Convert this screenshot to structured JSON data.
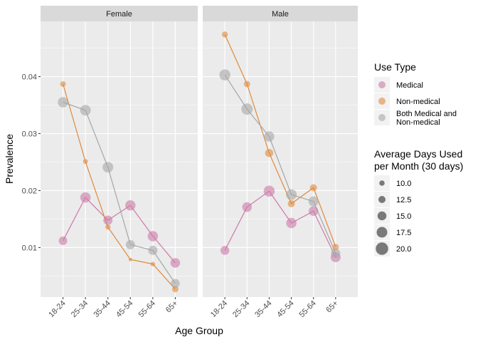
{
  "chart_data": {
    "type": "line",
    "xlabel": "Age Group",
    "ylabel": "Prevalence",
    "categories": [
      "18-24",
      "25-34",
      "35-44",
      "45-54",
      "55-64",
      "65+"
    ],
    "y_ticks": [
      "0.01",
      "0.02",
      "0.03",
      "0.04"
    ],
    "ylim": [
      0.0013,
      0.0497
    ],
    "grid": true,
    "facets": [
      {
        "label": "Female",
        "series": [
          {
            "name": "Medical",
            "values": [
              0.0112,
              0.0188,
              0.0148,
              0.0174,
              0.012,
              0.0073
            ],
            "days": [
              14.5,
              17.0,
              15.5,
              17.0,
              17.0,
              16.0
            ]
          },
          {
            "name": "Non-medical",
            "values": [
              0.0387,
              0.0251,
              0.0136,
              0.0079,
              0.0071,
              0.0027
            ],
            "days": [
              10.5,
              9.5,
              10.0,
              7.5,
              9.0,
              11.5
            ]
          },
          {
            "name": "Both Medical and Non-medical",
            "values": [
              0.0355,
              0.0341,
              0.0241,
              0.0105,
              0.0095,
              0.0037
            ],
            "days": [
              17.0,
              17.5,
              17.5,
              15.5,
              15.5,
              15.0
            ]
          }
        ]
      },
      {
        "label": "Male",
        "series": [
          {
            "name": "Medical",
            "values": [
              0.0095,
              0.0171,
              0.0199,
              0.0143,
              0.0164,
              0.0083
            ],
            "days": [
              15.0,
              16.0,
              18.0,
              17.0,
              16.0,
              16.5
            ]
          },
          {
            "name": "Non-medical",
            "values": [
              0.0474,
              0.0387,
              0.0266,
              0.0177,
              0.0205,
              0.0101
            ],
            "days": [
              11.0,
              11.5,
              14.0,
              12.5,
              12.5,
              11.5
            ]
          },
          {
            "name": "Both Medical and Non-medical",
            "values": [
              0.0403,
              0.0343,
              0.0295,
              0.0193,
              0.0181,
              0.009
            ],
            "days": [
              18.0,
              18.5,
              17.0,
              17.5,
              16.5,
              15.5
            ]
          }
        ]
      }
    ],
    "colors": {
      "Medical": "#cc79a7",
      "Non-medical": "#e08a3c",
      "Both Medical and Non-medical": "#a6a6a6",
      "panel_bg": "#ebebeb",
      "strip_bg": "#d9d9d9",
      "grid": "#ffffff"
    },
    "legend": {
      "position": "right",
      "color_title": "Use Type",
      "color_items": [
        {
          "key": "Medical",
          "lines": [
            "Medical"
          ]
        },
        {
          "key": "Non-medical",
          "lines": [
            "Non-medical"
          ]
        },
        {
          "key": "Both Medical and Non-medical",
          "lines": [
            "Both Medical and",
            "Non-medical"
          ]
        }
      ],
      "size_title_lines": [
        "Average Days Used",
        "per Month (30 days)"
      ],
      "size_items": [
        {
          "label": "10.0",
          "value": 10.0
        },
        {
          "label": "12.5",
          "value": 12.5
        },
        {
          "label": "15.0",
          "value": 15.0
        },
        {
          "label": "17.5",
          "value": 17.5
        },
        {
          "label": "20.0",
          "value": 20.0
        }
      ]
    }
  }
}
